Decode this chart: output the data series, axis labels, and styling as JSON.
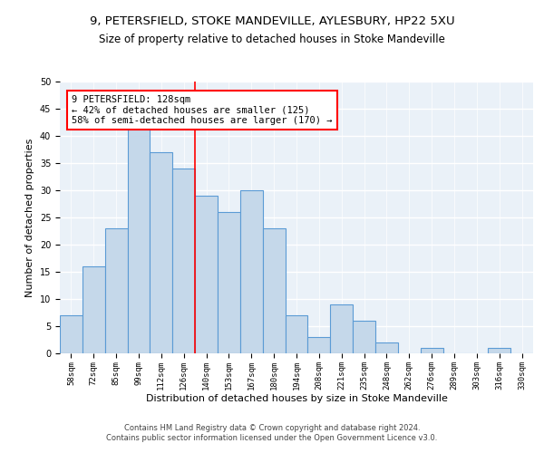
{
  "title1": "9, PETERSFIELD, STOKE MANDEVILLE, AYLESBURY, HP22 5XU",
  "title2": "Size of property relative to detached houses in Stoke Mandeville",
  "xlabel": "Distribution of detached houses by size in Stoke Mandeville",
  "ylabel": "Number of detached properties",
  "footer1": "Contains HM Land Registry data © Crown copyright and database right 2024.",
  "footer2": "Contains public sector information licensed under the Open Government Licence v3.0.",
  "annotation_line1": "9 PETERSFIELD: 128sqm",
  "annotation_line2": "← 42% of detached houses are smaller (125)",
  "annotation_line3": "58% of semi-detached houses are larger (170) →",
  "bar_labels": [
    "58sqm",
    "72sqm",
    "85sqm",
    "99sqm",
    "112sqm",
    "126sqm",
    "140sqm",
    "153sqm",
    "167sqm",
    "180sqm",
    "194sqm",
    "208sqm",
    "221sqm",
    "235sqm",
    "248sqm",
    "262sqm",
    "276sqm",
    "289sqm",
    "303sqm",
    "316sqm",
    "330sqm"
  ],
  "bar_values": [
    7,
    16,
    23,
    42,
    37,
    34,
    29,
    26,
    30,
    23,
    7,
    3,
    9,
    6,
    2,
    0,
    1,
    0,
    0,
    1,
    0
  ],
  "bar_color": "#c5d8ea",
  "bar_edge_color": "#5b9bd5",
  "red_line_x": 5.5,
  "ylim": [
    0,
    50
  ],
  "yticks": [
    0,
    5,
    10,
    15,
    20,
    25,
    30,
    35,
    40,
    45,
    50
  ],
  "bg_color": "#eaf1f8",
  "grid_color": "#ffffff",
  "title1_fontsize": 9.5,
  "title2_fontsize": 8.5,
  "xlabel_fontsize": 8,
  "ylabel_fontsize": 8,
  "tick_fontsize": 6.5,
  "annotation_fontsize": 7.5,
  "footer_fontsize": 6
}
